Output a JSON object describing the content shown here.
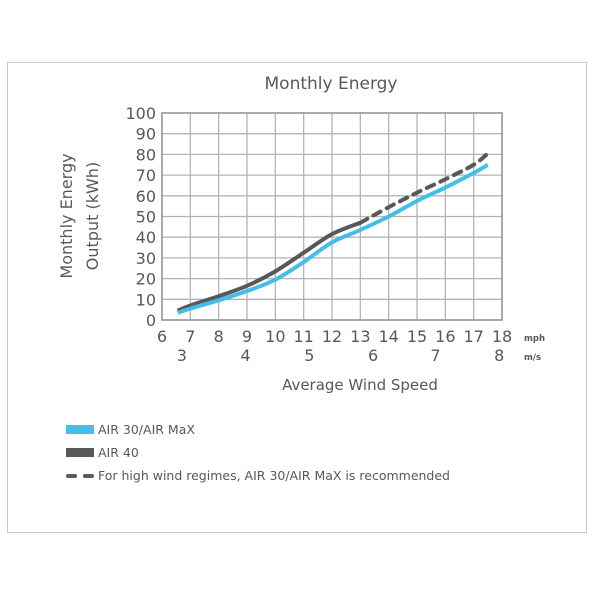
{
  "chart_data": {
    "type": "line",
    "title": "Monthly Energy",
    "xlabel": "Average Wind Speed",
    "ylabel": "Monthly Energy Output (kWh)",
    "ylabel_lines": [
      "Monthly Energy",
      "Output (kWh)"
    ],
    "xlim": [
      6,
      18
    ],
    "ylim": [
      0,
      100
    ],
    "grid": true,
    "x_unit_primary": "mph",
    "x_unit_secondary": "m/s",
    "x_ticks_mph": [
      6,
      7,
      8,
      9,
      10,
      11,
      12,
      13,
      14,
      15,
      16,
      17,
      18
    ],
    "x_ticks_ms": [
      {
        "label": "3",
        "mph": 6.7
      },
      {
        "label": "4",
        "mph": 8.95
      },
      {
        "label": "5",
        "mph": 11.2
      },
      {
        "label": "6",
        "mph": 13.45
      },
      {
        "label": "7",
        "mph": 15.65
      },
      {
        "label": "8",
        "mph": 17.9
      }
    ],
    "y_ticks": [
      0,
      10,
      20,
      30,
      40,
      50,
      60,
      70,
      80,
      90,
      100
    ],
    "colors": {
      "air30": "#45bde6",
      "air40": "#58585a",
      "grid": "#b4b4b4",
      "axis": "#9a9a9a"
    },
    "series": [
      {
        "name": "AIR 30/AIR MaX",
        "style": "solid",
        "color": "#45bde6",
        "x": [
          6.55,
          7,
          8,
          9,
          10,
          11,
          12,
          13,
          14,
          15,
          16,
          17,
          17.5
        ],
        "y": [
          3.5,
          5.5,
          9.5,
          14,
          19.5,
          28,
          37.5,
          43.5,
          50,
          57.5,
          64,
          71,
          75
        ]
      },
      {
        "name": "AIR 40",
        "style": "solid",
        "color": "#58585a",
        "x": [
          6.55,
          7,
          8,
          9,
          10,
          11,
          12,
          13
        ],
        "y": [
          4.5,
          7,
          11.5,
          16.5,
          23.5,
          32.5,
          41.5,
          47
        ]
      },
      {
        "name": "AIR 40 (high wind, AIR 30/AIR MaX recommended)",
        "style": "dashed",
        "color": "#58585a",
        "x": [
          13,
          14,
          15,
          16,
          17,
          17.5
        ],
        "y": [
          47,
          54.5,
          61.5,
          68,
          75,
          80.5
        ]
      }
    ],
    "legend": {
      "placement": "bottom-left",
      "entries": [
        {
          "label": "AIR 30/AIR MaX",
          "swatch": "solid-bar",
          "color": "#45bde6"
        },
        {
          "label": "AIR 40",
          "swatch": "solid-bar",
          "color": "#58585a"
        },
        {
          "label": "For high wind regimes, AIR 30/AIR MaX is recommended",
          "swatch": "dashed",
          "color": "#58585a"
        }
      ]
    }
  }
}
